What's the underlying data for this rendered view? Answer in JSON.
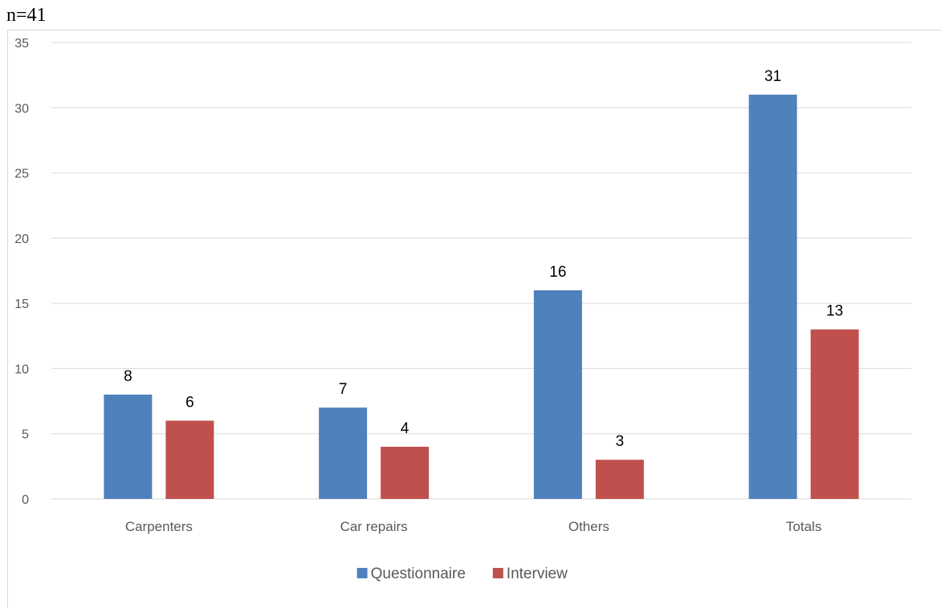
{
  "chart_data": {
    "type": "bar",
    "note": "n=41",
    "title": "",
    "xlabel": "",
    "ylabel": "",
    "categories": [
      "Carpenters",
      "Car repairs",
      "Others",
      "Totals"
    ],
    "series": [
      {
        "name": "Questionnaire",
        "color": "#4f81bd",
        "values": [
          8,
          7,
          16,
          31
        ]
      },
      {
        "name": "Interview",
        "color": "#c0504d",
        "values": [
          6,
          4,
          3,
          13
        ]
      }
    ],
    "ylim": [
      0,
      35
    ],
    "yticks": [
      0,
      5,
      10,
      15,
      20,
      25,
      30,
      35
    ],
    "grid": true,
    "legend": "bottom",
    "data_labels": true
  }
}
